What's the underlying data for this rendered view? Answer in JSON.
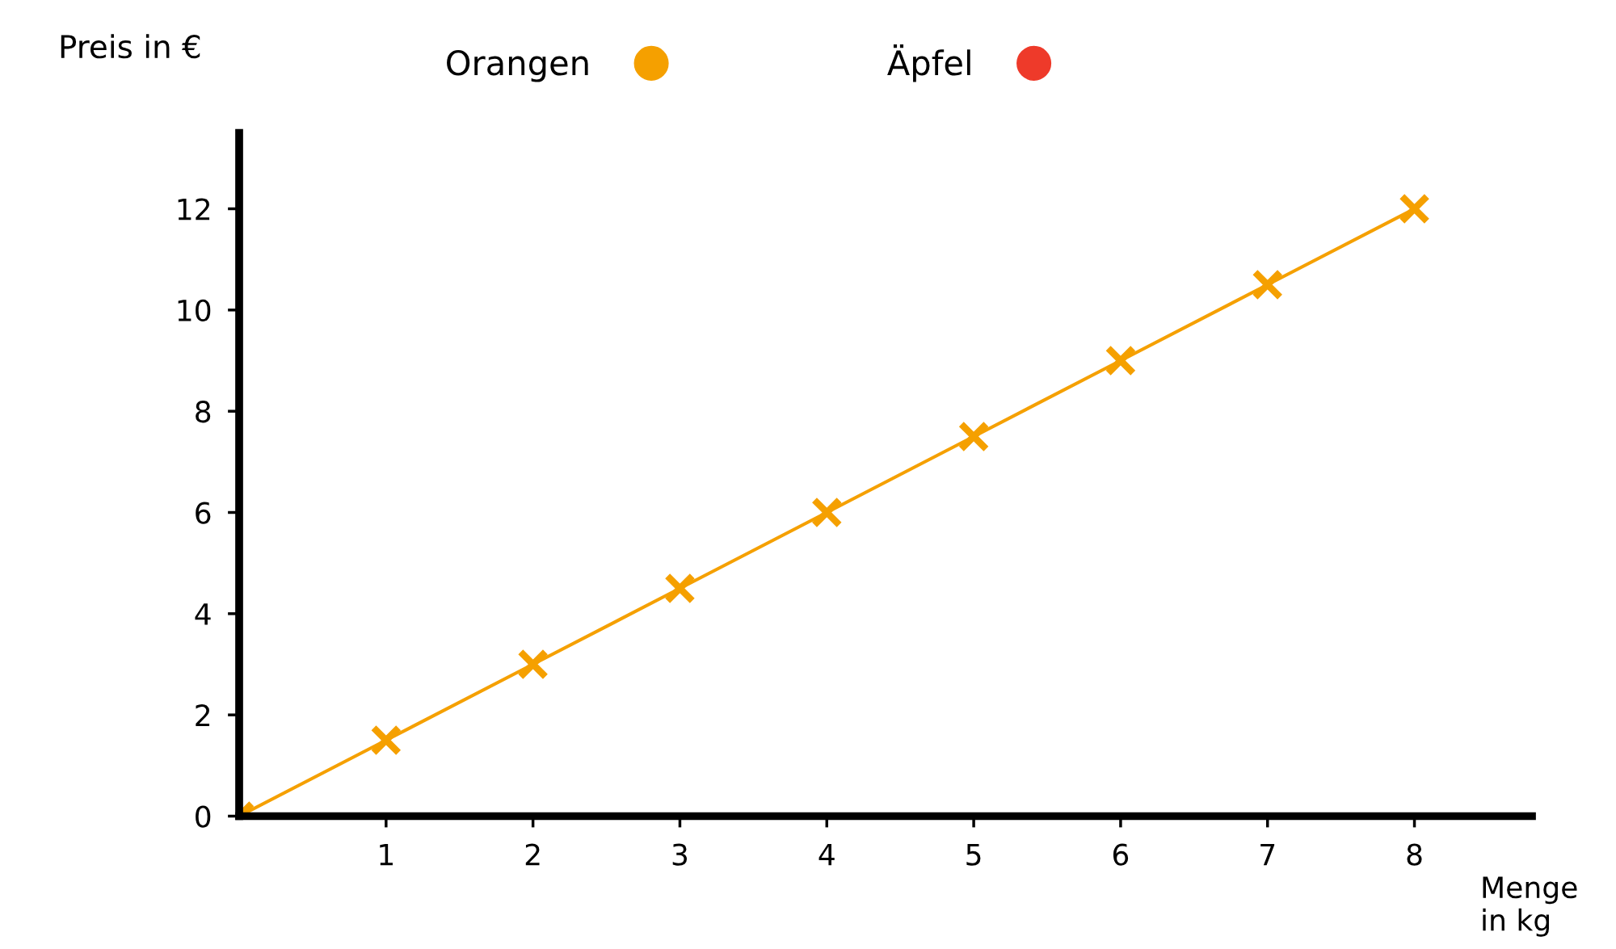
{
  "chart_data": {
    "type": "line",
    "xlabel": "Menge\nin kg",
    "ylabel": "Preis in €",
    "x": [
      0,
      1,
      2,
      3,
      4,
      5,
      6,
      7,
      8
    ],
    "series": [
      {
        "name": "Orangen",
        "color": "#f5a000",
        "values": [
          0,
          1.5,
          3,
          4.5,
          6,
          7.5,
          9,
          10.5,
          12
        ]
      },
      {
        "name": "Äpfel",
        "color": "#ee3a2a",
        "values": [
          null,
          null,
          null,
          null,
          null,
          null,
          null,
          null,
          null
        ]
      }
    ],
    "xlim": [
      0,
      8.8
    ],
    "ylim": [
      0,
      13.5
    ],
    "xticks": [
      1,
      2,
      3,
      4,
      5,
      6,
      7,
      8
    ],
    "yticks": [
      0,
      2,
      4,
      6,
      8,
      10,
      12
    ],
    "marker": "cross",
    "line_style": "solid",
    "legend": "top",
    "grid": false
  }
}
